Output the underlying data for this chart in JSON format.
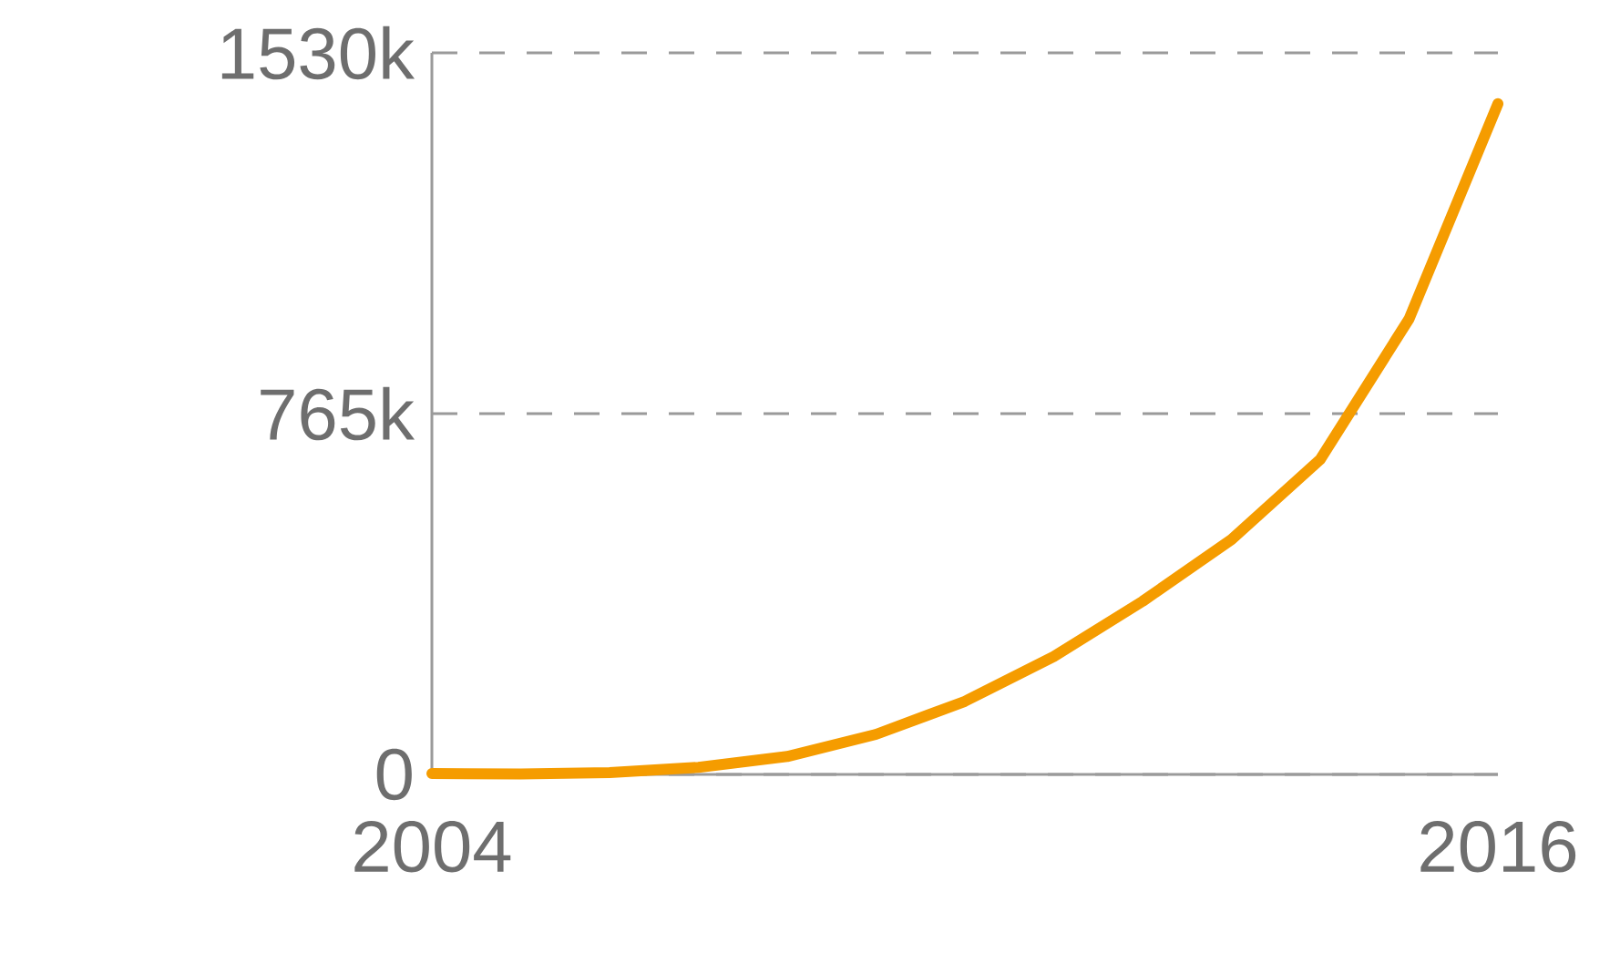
{
  "chart_data": {
    "type": "line",
    "x": [
      2004,
      2005,
      2006,
      2007,
      2008,
      2009,
      2010,
      2011,
      2012,
      2013,
      2014,
      2015,
      2016
    ],
    "series": [
      {
        "color": "#f59c00",
        "values": [
          2000,
          1000,
          4000,
          15000,
          38000,
          85000,
          155000,
          250000,
          367000,
          498000,
          668000,
          966000,
          1422000
        ]
      }
    ],
    "xlim": [
      2004,
      2016
    ],
    "ylim": [
      0,
      1530000
    ],
    "xticks": [
      2004,
      2016
    ],
    "yticks": [
      0,
      {
        "value": 765000,
        "label": "765k"
      },
      {
        "value": 1530000,
        "label": "1530k"
      }
    ],
    "grid": "y",
    "marker": "none",
    "line_style": "solid"
  }
}
